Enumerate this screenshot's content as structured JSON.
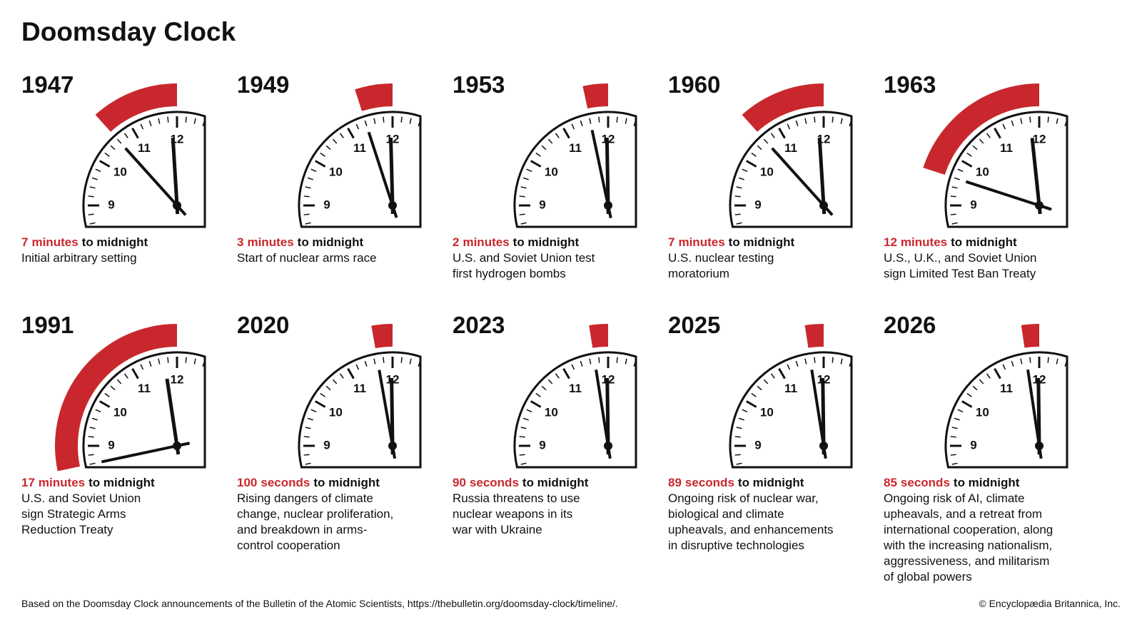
{
  "title": "Doomsday Clock",
  "dial_labels": [
    9,
    10,
    11,
    12
  ],
  "panels": [
    {
      "year": "1947",
      "amount": 7,
      "unit": "minutes",
      "suffix": "to midnight",
      "description": [
        "Initial arbitrary setting"
      ]
    },
    {
      "year": "1949",
      "amount": 3,
      "unit": "minutes",
      "suffix": "to midnight",
      "description": [
        "Start of nuclear arms race"
      ]
    },
    {
      "year": "1953",
      "amount": 2,
      "unit": "minutes",
      "suffix": "to midnight",
      "description": [
        "U.S. and Soviet Union test",
        "first hydrogen bombs"
      ]
    },
    {
      "year": "1960",
      "amount": 7,
      "unit": "minutes",
      "suffix": "to midnight",
      "description": [
        "U.S. nuclear testing",
        "moratorium"
      ]
    },
    {
      "year": "1963",
      "amount": 12,
      "unit": "minutes",
      "suffix": "to midnight",
      "description": [
        "U.S., U.K., and Soviet Union",
        "sign Limited Test Ban Treaty"
      ]
    },
    {
      "year": "1991",
      "amount": 17,
      "unit": "minutes",
      "suffix": "to midnight",
      "description": [
        "U.S. and Soviet Union",
        "sign Strategic Arms",
        "Reduction Treaty"
      ]
    },
    {
      "year": "2020",
      "amount": 100,
      "unit": "seconds",
      "suffix": "to midnight",
      "description": [
        "Rising dangers of climate",
        "change, nuclear proliferation,",
        "and breakdown in arms-",
        "control cooperation"
      ]
    },
    {
      "year": "2023",
      "amount": 90,
      "unit": "seconds",
      "suffix": "to midnight",
      "description": [
        "Russia threatens to use",
        "nuclear weapons in its",
        "war with Ukraine"
      ]
    },
    {
      "year": "2025",
      "amount": 89,
      "unit": "seconds",
      "suffix": "to midnight",
      "description": [
        "Ongoing risk of nuclear war,",
        "biological and climate",
        "upheavals, and enhancements",
        "in disruptive technologies"
      ]
    },
    {
      "year": "2026",
      "amount": 85,
      "unit": "seconds",
      "suffix": "to midnight",
      "description": [
        "Ongoing risk of AI, climate",
        "upheavals, and a retreat from",
        "international cooperation, along",
        "with the increasing nationalism,",
        "aggressiveness, and militarism",
        "of global powers"
      ]
    }
  ],
  "footer": {
    "source": "Based on the Doomsday Clock announcements of the Bulletin of the Atomic Scientists, https://thebulletin.org/doomsday-clock/timeline/.",
    "copyright": "© Encyclopædia Britannica, Inc."
  }
}
